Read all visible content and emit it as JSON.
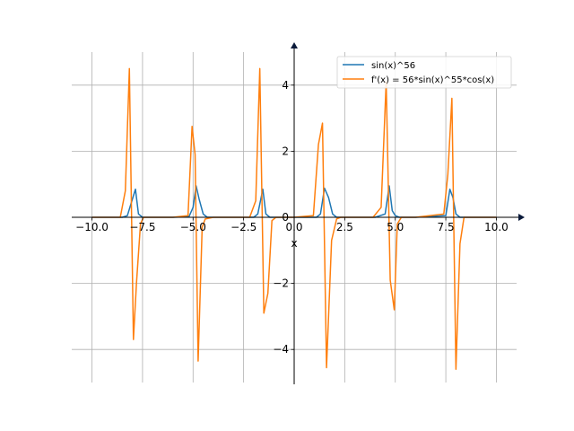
{
  "chart_data": {
    "type": "line",
    "xlabel": "x",
    "ylabel": "",
    "xlim": [
      -11,
      11
    ],
    "ylim": [
      -5,
      5
    ],
    "grid": true,
    "legend_position": "top-right",
    "x_ticks": [
      -10,
      -7.5,
      -5,
      -2.5,
      0,
      2.5,
      5,
      7.5,
      10
    ],
    "x_tick_labels": [
      "−10.0",
      "−7.5",
      "−5.0",
      "−2.5",
      "0.0",
      "2.5",
      "5.0",
      "7.5",
      "10.0"
    ],
    "y_ticks": [
      -4,
      -2,
      0,
      2,
      4
    ],
    "y_tick_labels": [
      "−4",
      "−2",
      "0",
      "2",
      "4"
    ],
    "series": [
      {
        "name": "sin(x)^56",
        "color": "#1f77b4",
        "x": [
          -10.0,
          -8.5,
          -8.25,
          -8.0,
          -7.85,
          -7.7,
          -7.5,
          -7.2,
          -6.0,
          -5.2,
          -5.0,
          -4.85,
          -4.7,
          -4.5,
          -4.3,
          -2.0,
          -1.8,
          -1.55,
          -1.4,
          -1.2,
          -1.0,
          0.0,
          1.1,
          1.3,
          1.5,
          1.7,
          1.9,
          2.1,
          4.0,
          4.5,
          4.7,
          4.85,
          5.0,
          5.2,
          6.0,
          7.5,
          7.7,
          7.85,
          8.0,
          8.2,
          8.4,
          10.0
        ],
        "y": [
          0.0,
          0.0,
          0.05,
          0.55,
          0.85,
          0.1,
          0.0,
          0.0,
          0.0,
          0.02,
          0.3,
          0.95,
          0.55,
          0.1,
          0.0,
          0.0,
          0.1,
          0.85,
          0.1,
          0.0,
          0.0,
          0.0,
          0.0,
          0.1,
          0.88,
          0.6,
          0.1,
          0.0,
          0.0,
          0.1,
          0.95,
          0.2,
          0.05,
          0.0,
          0.0,
          0.05,
          0.85,
          0.6,
          0.1,
          0.0,
          0.0,
          0.0
        ]
      },
      {
        "name": "f'(x) = 56*sin(x)^55*cos(x)",
        "color": "#ff7f0e",
        "x": [
          -10.0,
          -8.6,
          -8.35,
          -8.15,
          -7.95,
          -7.8,
          -7.6,
          -7.45,
          -7.2,
          -6.0,
          -5.25,
          -5.05,
          -4.9,
          -4.75,
          -4.55,
          -4.4,
          -4.0,
          -2.2,
          -1.9,
          -1.7,
          -1.5,
          -1.3,
          -1.1,
          -0.9,
          0.0,
          0.95,
          1.2,
          1.4,
          1.6,
          1.85,
          2.1,
          2.3,
          3.9,
          4.3,
          4.55,
          4.75,
          4.95,
          5.1,
          5.3,
          6.0,
          7.4,
          7.6,
          7.8,
          8.0,
          8.2,
          8.4,
          10.0
        ],
        "y": [
          0.0,
          0.0,
          0.8,
          4.5,
          -3.7,
          -2.0,
          -0.2,
          0.0,
          0.0,
          0.0,
          0.05,
          2.75,
          1.9,
          -4.35,
          -0.3,
          -0.05,
          0.0,
          0.0,
          0.5,
          4.5,
          -2.9,
          -2.3,
          -0.1,
          0.0,
          0.0,
          0.05,
          2.2,
          2.85,
          -4.55,
          -0.7,
          -0.05,
          0.0,
          0.0,
          0.3,
          4.1,
          -1.9,
          -2.8,
          -0.2,
          0.0,
          0.0,
          0.1,
          1.3,
          3.6,
          -4.6,
          -0.8,
          0.0,
          0.0
        ]
      }
    ]
  }
}
